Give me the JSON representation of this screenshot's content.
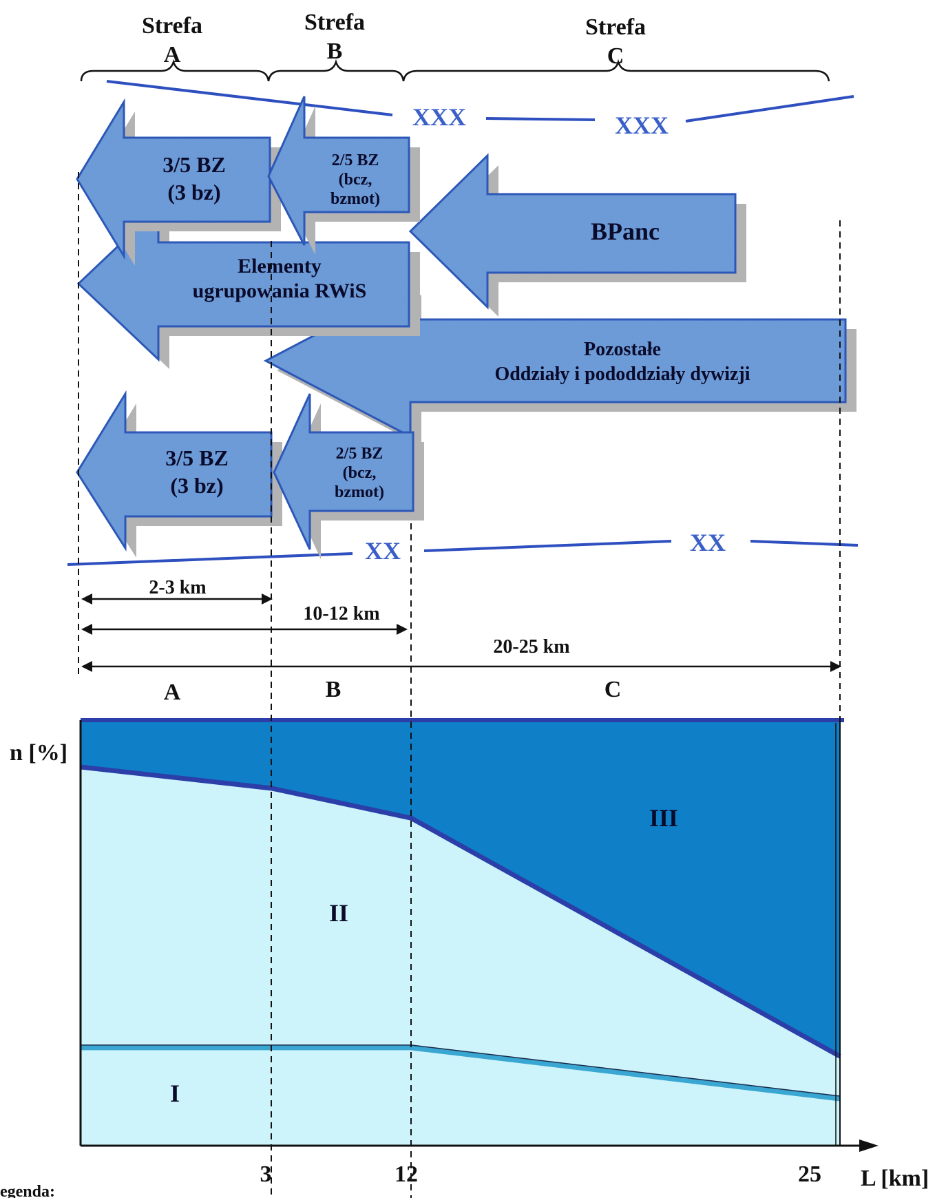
{
  "zones_header": [
    {
      "word": "Strefa",
      "letter": "A"
    },
    {
      "word": "Strefa",
      "letter": "B"
    },
    {
      "word": "Strefa",
      "letter": "C"
    }
  ],
  "echelon": {
    "top": "XXX",
    "bottom": "XX"
  },
  "arrows": {
    "top_a": [
      "3/5 BZ",
      "(3 bz)"
    ],
    "top_b": [
      "2/5 BZ",
      "(bcz,",
      "bzmot)"
    ],
    "bpanc": [
      "BPanc"
    ],
    "rwis": [
      "Elementy",
      "ugrupowania RWiS"
    ],
    "pozostale": [
      "Pozostałe",
      "Oddziały i pododdziały dywizji"
    ],
    "bot_a": [
      "3/5 BZ",
      "(3 bz)"
    ],
    "bot_b": [
      "2/5 BZ",
      "(bcz,",
      "bzmot)"
    ]
  },
  "distances": {
    "a": "2-3 km",
    "b": "10-12 km",
    "c": "20-25 km"
  },
  "zone_letters": [
    "A",
    "B",
    "C"
  ],
  "chart": {
    "y_label": "n [%]",
    "x_label": "L [km]",
    "x_ticks": [
      "3",
      "12",
      "25"
    ],
    "regions": [
      "I",
      "II",
      "III"
    ],
    "legend_stub": "egenda:"
  },
  "chart_data": {
    "type": "area",
    "x": [
      0,
      3,
      12,
      25
    ],
    "xlabel": "L [km]",
    "ylabel": "n [%]",
    "xlim": [
      0,
      25
    ],
    "ylim": [
      0,
      100
    ],
    "stacked_boundaries": [
      {
        "between": "I / II",
        "values": [
          23,
          23,
          23,
          11
        ]
      },
      {
        "between": "II / III",
        "values": [
          89,
          84,
          77,
          21
        ]
      }
    ],
    "regions": [
      "I",
      "II",
      "III"
    ],
    "colors": {
      "I": "#cdf4fb",
      "II": "#cdf4fb",
      "III": "#0f7fc8",
      "boundary_low": "#3aa6d2",
      "boundary_high": "#2c3fa8"
    }
  }
}
